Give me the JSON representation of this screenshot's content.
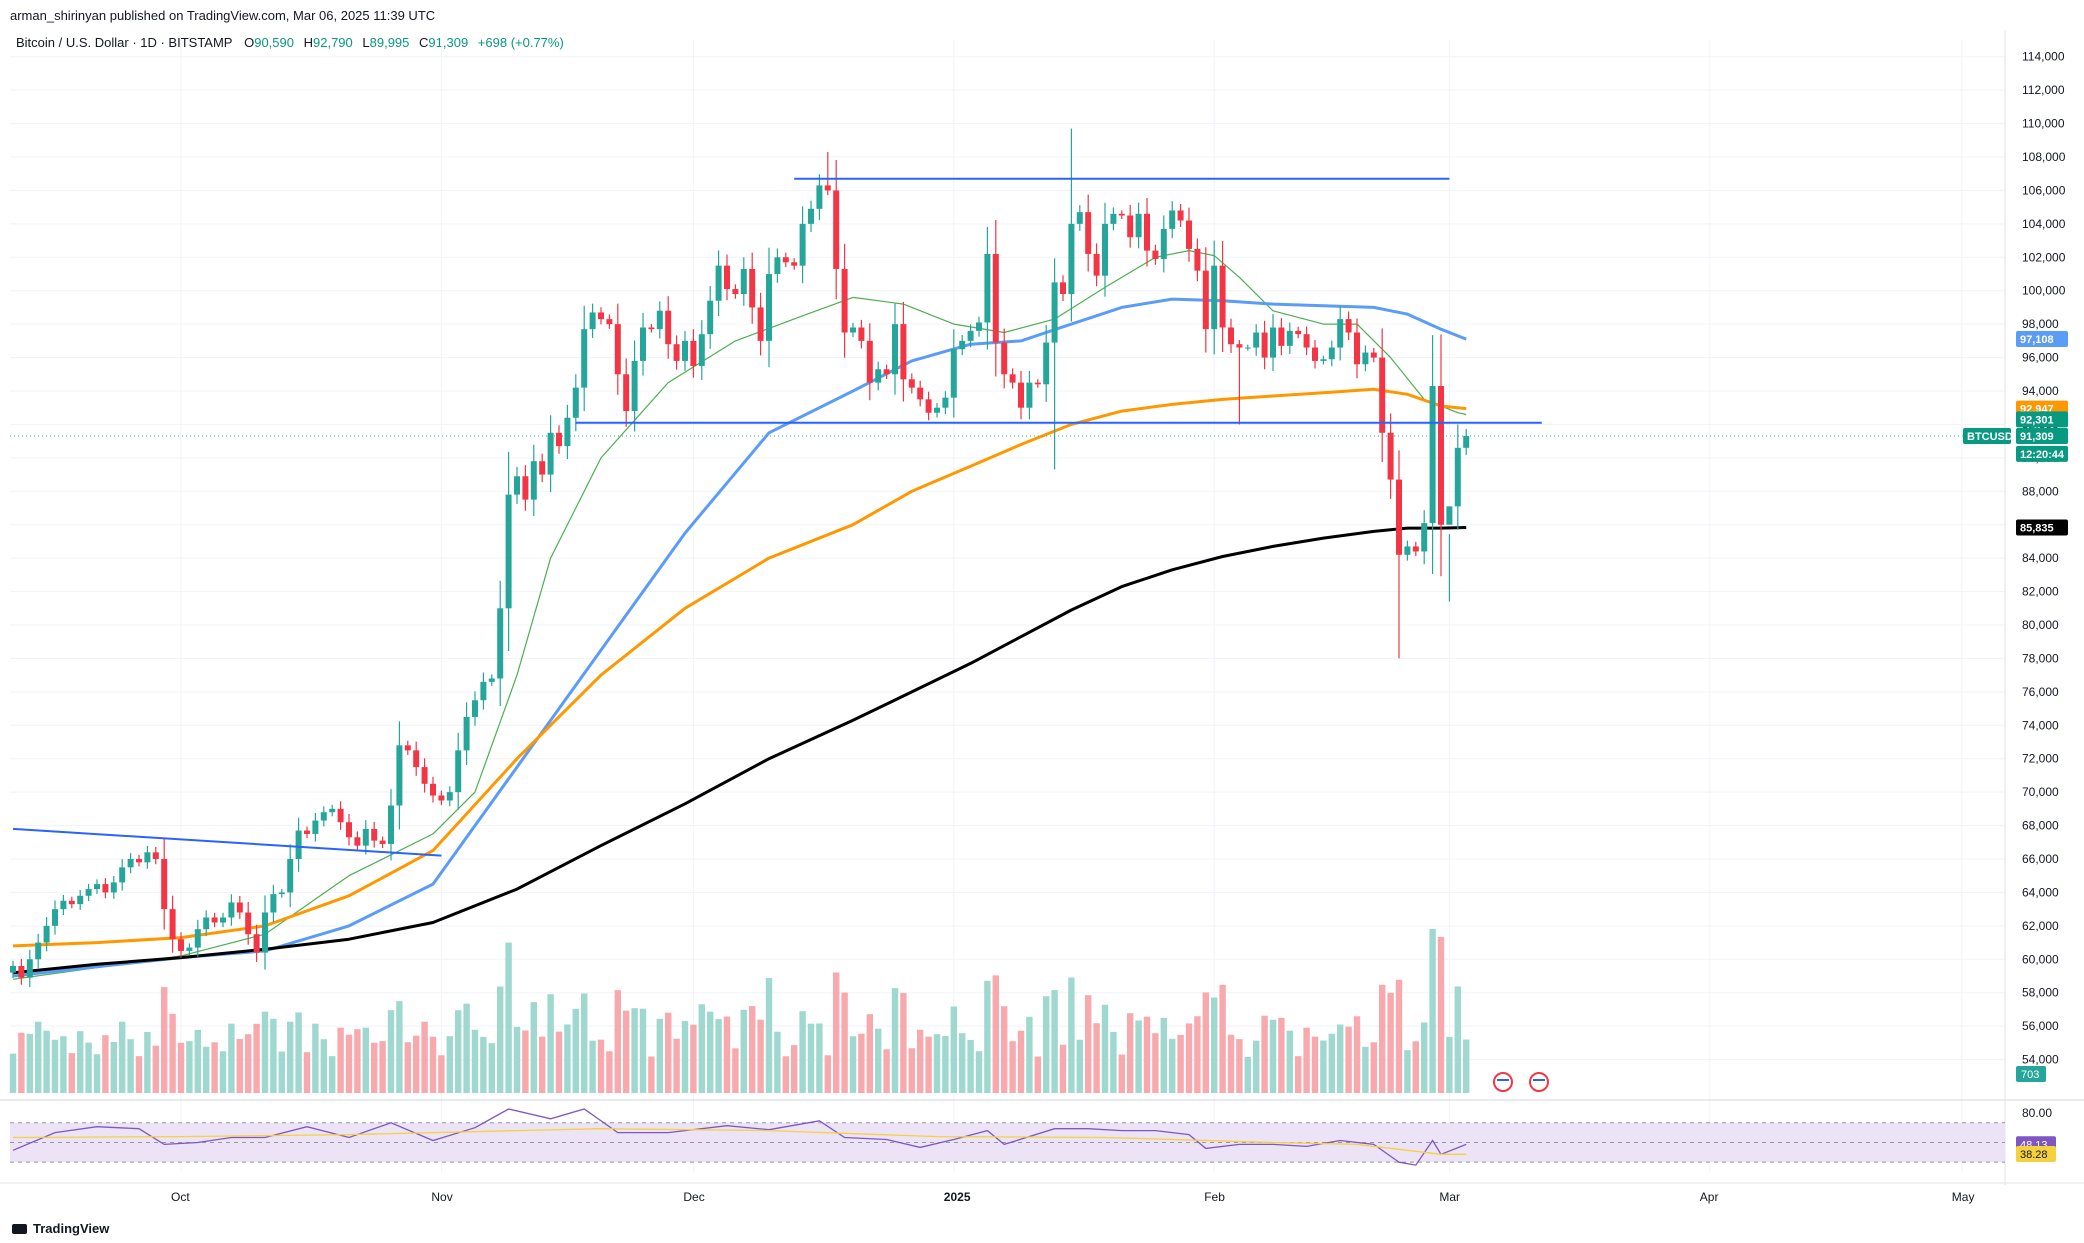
{
  "header": {
    "published": "arman_shirinyan published on TradingView.com, Mar 06, 2025 11:39 UTC"
  },
  "symbol_info": {
    "title": "Bitcoin / U.S. Dollar · 1D · BITSTAMP",
    "open_key": "O",
    "open": "90,590",
    "high_key": "H",
    "high": "92,790",
    "low_key": "L",
    "low": "89,995",
    "close_key": "C",
    "close": "91,309",
    "change": "+698 (+0.77%)"
  },
  "brand": "TradingView",
  "colors": {
    "up": "#26a69a",
    "down": "#f23645",
    "vol_up": "#9ed8cf",
    "vol_down": "#f7a9ae",
    "ma_short": "#4caf50",
    "ma_blue": "#5b9cf6",
    "ma_orange": "#ff9800",
    "ma_black": "#000000",
    "trendline": "#2962ff",
    "rsi": "#7e57c2",
    "rsi_ma": "#f5d13b",
    "rsi_band": "#ece3f7",
    "grid": "#f0f3fa",
    "text": "#131722"
  },
  "chart_data": {
    "type": "candlestick",
    "title": "Bitcoin / U.S. Dollar · 1D · BITSTAMP",
    "ylim": [
      52000,
      115000
    ],
    "y_ticks": [
      "114,000",
      "112,000",
      "110,000",
      "108,000",
      "106,000",
      "104,000",
      "102,000",
      "100,000",
      "98,000",
      "96,000",
      "94,000",
      "92,000",
      "90,000",
      "88,000",
      "86,000",
      "84,000",
      "82,000",
      "80,000",
      "78,000",
      "76,000",
      "74,000",
      "72,000",
      "70,000",
      "68,000",
      "66,000",
      "64,000",
      "62,000",
      "60,000",
      "58,000",
      "56,000",
      "54,000"
    ],
    "x_ticks": [
      "Oct",
      "Nov",
      "Dec",
      "2025",
      "Feb",
      "Mar",
      "Apr",
      "May"
    ],
    "x_tick_days": [
      20,
      51,
      81,
      112,
      143,
      171,
      202,
      232
    ],
    "last_day": 176,
    "ohlc_close": [
      [
        0,
        59600
      ],
      [
        1,
        58900
      ],
      [
        2,
        60000
      ],
      [
        3,
        61000
      ],
      [
        4,
        62000
      ],
      [
        5,
        63000
      ],
      [
        6,
        63500
      ],
      [
        7,
        63300
      ],
      [
        8,
        63800
      ],
      [
        9,
        64200
      ],
      [
        10,
        64500
      ],
      [
        11,
        64000
      ],
      [
        12,
        64600
      ],
      [
        13,
        65500
      ],
      [
        14,
        66000
      ],
      [
        15,
        65800
      ],
      [
        16,
        66400
      ],
      [
        17,
        66000
      ],
      [
        18,
        63000
      ],
      [
        19,
        61200
      ],
      [
        20,
        60500
      ],
      [
        21,
        60700
      ],
      [
        22,
        61800
      ],
      [
        23,
        62500
      ],
      [
        24,
        62200
      ],
      [
        25,
        62500
      ],
      [
        26,
        63400
      ],
      [
        27,
        62800
      ],
      [
        28,
        61500
      ],
      [
        29,
        60400
      ],
      [
        30,
        62800
      ],
      [
        31,
        63900
      ],
      [
        32,
        64000
      ],
      [
        33,
        66000
      ],
      [
        34,
        67700
      ],
      [
        35,
        67500
      ],
      [
        36,
        68300
      ],
      [
        37,
        68800
      ],
      [
        38,
        69000
      ],
      [
        39,
        68200
      ],
      [
        40,
        67300
      ],
      [
        41,
        66800
      ],
      [
        42,
        67800
      ],
      [
        43,
        67100
      ],
      [
        44,
        66900
      ],
      [
        45,
        69200
      ],
      [
        46,
        72800
      ],
      [
        47,
        72500
      ],
      [
        48,
        71500
      ],
      [
        49,
        70500
      ],
      [
        50,
        69800
      ],
      [
        51,
        69500
      ],
      [
        52,
        70000
      ],
      [
        53,
        72500
      ],
      [
        54,
        74500
      ],
      [
        55,
        75500
      ],
      [
        56,
        76600
      ],
      [
        57,
        76800
      ],
      [
        58,
        81000
      ],
      [
        59,
        87800
      ],
      [
        60,
        88900
      ],
      [
        61,
        87500
      ],
      [
        62,
        89800
      ],
      [
        63,
        89000
      ],
      [
        64,
        91500
      ],
      [
        65,
        90700
      ],
      [
        66,
        92400
      ],
      [
        67,
        94200
      ],
      [
        68,
        97700
      ],
      [
        69,
        98700
      ],
      [
        70,
        98300
      ],
      [
        71,
        98000
      ],
      [
        72,
        95000
      ],
      [
        73,
        92800
      ],
      [
        74,
        95800
      ],
      [
        75,
        97800
      ],
      [
        76,
        97700
      ],
      [
        77,
        98800
      ],
      [
        78,
        96800
      ],
      [
        79,
        95800
      ],
      [
        80,
        97000
      ],
      [
        81,
        95500
      ],
      [
        82,
        97400
      ],
      [
        83,
        99400
      ],
      [
        84,
        101500
      ],
      [
        85,
        100100
      ],
      [
        86,
        99800
      ],
      [
        87,
        101300
      ],
      [
        88,
        99000
      ],
      [
        89,
        97000
      ],
      [
        90,
        101000
      ],
      [
        91,
        102000
      ],
      [
        92,
        101700
      ],
      [
        93,
        101500
      ],
      [
        94,
        104000
      ],
      [
        95,
        104900
      ],
      [
        96,
        106300
      ],
      [
        97,
        106000
      ],
      [
        98,
        101300
      ],
      [
        99,
        97500
      ],
      [
        100,
        97800
      ],
      [
        101,
        97000
      ],
      [
        102,
        94500
      ],
      [
        103,
        95300
      ],
      [
        104,
        95000
      ],
      [
        105,
        98000
      ],
      [
        106,
        94700
      ],
      [
        107,
        94200
      ],
      [
        108,
        93500
      ],
      [
        109,
        92700
      ],
      [
        110,
        93000
      ],
      [
        111,
        93600
      ],
      [
        112,
        96500
      ],
      [
        113,
        97000
      ],
      [
        114,
        97600
      ],
      [
        115,
        98100
      ],
      [
        116,
        102200
      ],
      [
        117,
        96900
      ],
      [
        118,
        95000
      ],
      [
        119,
        94500
      ],
      [
        120,
        93000
      ],
      [
        121,
        94500
      ],
      [
        122,
        94400
      ],
      [
        123,
        96900
      ],
      [
        124,
        100500
      ],
      [
        125,
        99800
      ],
      [
        126,
        104000
      ],
      [
        127,
        104700
      ],
      [
        128,
        102200
      ],
      [
        129,
        100900
      ],
      [
        130,
        104000
      ],
      [
        131,
        104600
      ],
      [
        132,
        104500
      ],
      [
        133,
        103200
      ],
      [
        134,
        104600
      ],
      [
        135,
        102400
      ],
      [
        136,
        101900
      ],
      [
        137,
        103700
      ],
      [
        138,
        104800
      ],
      [
        139,
        104200
      ],
      [
        140,
        102500
      ],
      [
        141,
        101200
      ],
      [
        142,
        97700
      ],
      [
        143,
        101500
      ],
      [
        144,
        97800
      ],
      [
        145,
        96800
      ],
      [
        146,
        96600
      ],
      [
        147,
        96600
      ],
      [
        148,
        97500
      ],
      [
        149,
        96000
      ],
      [
        150,
        97800
      ],
      [
        151,
        96700
      ],
      [
        152,
        97600
      ],
      [
        153,
        97400
      ],
      [
        154,
        96600
      ],
      [
        155,
        95800
      ],
      [
        156,
        95900
      ],
      [
        157,
        96600
      ],
      [
        158,
        98300
      ],
      [
        159,
        97500
      ],
      [
        160,
        95600
      ],
      [
        161,
        96300
      ],
      [
        162,
        96000
      ],
      [
        163,
        91500
      ],
      [
        164,
        88700
      ],
      [
        165,
        84200
      ],
      [
        166,
        84700
      ],
      [
        167,
        84400
      ],
      [
        168,
        86100
      ],
      [
        169,
        94300
      ],
      [
        170,
        86000
      ],
      [
        171,
        87100
      ],
      [
        172,
        90600
      ],
      [
        173,
        91309
      ]
    ],
    "series": [
      {
        "name": "",
        "color": "#4caf50",
        "points": [
          [
            0,
            58800
          ],
          [
            20,
            60200
          ],
          [
            30,
            61500
          ],
          [
            40,
            65000
          ],
          [
            50,
            67500
          ],
          [
            55,
            70000
          ],
          [
            60,
            77000
          ],
          [
            64,
            84000
          ],
          [
            70,
            90000
          ],
          [
            78,
            94500
          ],
          [
            86,
            97000
          ],
          [
            94,
            98500
          ],
          [
            100,
            99600
          ],
          [
            106,
            99200
          ],
          [
            112,
            98000
          ],
          [
            118,
            97500
          ],
          [
            124,
            98300
          ],
          [
            130,
            100200
          ],
          [
            136,
            102000
          ],
          [
            140,
            102400
          ],
          [
            143,
            102100
          ],
          [
            146,
            100800
          ],
          [
            150,
            98800
          ],
          [
            156,
            98000
          ],
          [
            160,
            98000
          ],
          [
            164,
            96000
          ],
          [
            168,
            93500
          ],
          [
            172,
            92700
          ],
          [
            173,
            92600
          ]
        ]
      },
      {
        "name": "",
        "color": "#5b9cf6",
        "points": [
          [
            0,
            59000
          ],
          [
            20,
            60100
          ],
          [
            30,
            60500
          ],
          [
            40,
            62000
          ],
          [
            50,
            64500
          ],
          [
            60,
            71500
          ],
          [
            70,
            78500
          ],
          [
            80,
            85500
          ],
          [
            90,
            91500
          ],
          [
            100,
            94000
          ],
          [
            107,
            95800
          ],
          [
            114,
            96800
          ],
          [
            120,
            97000
          ],
          [
            126,
            98000
          ],
          [
            132,
            99000
          ],
          [
            138,
            99500
          ],
          [
            144,
            99400
          ],
          [
            150,
            99200
          ],
          [
            156,
            99100
          ],
          [
            162,
            99000
          ],
          [
            166,
            98600
          ],
          [
            170,
            97700
          ],
          [
            173,
            97108
          ]
        ]
      },
      {
        "name": "",
        "color": "#ff9800",
        "points": [
          [
            0,
            60800
          ],
          [
            10,
            61000
          ],
          [
            20,
            61300
          ],
          [
            30,
            62000
          ],
          [
            40,
            63800
          ],
          [
            50,
            66500
          ],
          [
            60,
            72000
          ],
          [
            70,
            77000
          ],
          [
            80,
            81000
          ],
          [
            90,
            84000
          ],
          [
            100,
            86000
          ],
          [
            107,
            88000
          ],
          [
            114,
            89500
          ],
          [
            120,
            90800
          ],
          [
            126,
            92000
          ],
          [
            132,
            92800
          ],
          [
            138,
            93200
          ],
          [
            144,
            93500
          ],
          [
            150,
            93700
          ],
          [
            156,
            93900
          ],
          [
            162,
            94100
          ],
          [
            166,
            93800
          ],
          [
            170,
            93100
          ],
          [
            173,
            92947
          ]
        ]
      },
      {
        "name": "",
        "color": "#000000",
        "points": [
          [
            0,
            59200
          ],
          [
            10,
            59700
          ],
          [
            20,
            60100
          ],
          [
            30,
            60600
          ],
          [
            40,
            61200
          ],
          [
            50,
            62200
          ],
          [
            60,
            64200
          ],
          [
            70,
            66800
          ],
          [
            80,
            69300
          ],
          [
            90,
            72000
          ],
          [
            100,
            74300
          ],
          [
            107,
            76000
          ],
          [
            114,
            77700
          ],
          [
            120,
            79300
          ],
          [
            126,
            80900
          ],
          [
            132,
            82300
          ],
          [
            138,
            83300
          ],
          [
            144,
            84100
          ],
          [
            150,
            84700
          ],
          [
            156,
            85200
          ],
          [
            162,
            85600
          ],
          [
            166,
            85800
          ],
          [
            170,
            85800
          ],
          [
            173,
            85835
          ]
        ]
      }
    ],
    "trendlines": [
      {
        "from": [
          0,
          67800
        ],
        "to": [
          51,
          66200
        ]
      },
      {
        "from": [
          93,
          106700
        ],
        "to": [
          171,
          106700
        ]
      },
      {
        "from": [
          67,
          92100
        ],
        "to": [
          182,
          92100
        ]
      }
    ],
    "price_labels": [
      {
        "value": "97,108",
        "y": 97108,
        "color": "#5b9cf6"
      },
      {
        "value": "92,947",
        "y": 92947,
        "color": "#ff9800"
      },
      {
        "value": "92,301",
        "y": 92301,
        "color": "#089981"
      },
      {
        "value": "BTCUSD",
        "y": 91309,
        "color": "#089981"
      },
      {
        "value": "91,309",
        "y": 91309,
        "color": "#089981"
      },
      {
        "value": "12:20:44",
        "y": 90600,
        "color": "#089981"
      },
      {
        "value": "85,835",
        "y": 85835,
        "color": "#000000"
      }
    ],
    "volume": {
      "last_label": "703"
    },
    "rsi": {
      "ylim": [
        20,
        85
      ],
      "tick": "80.00",
      "values": [
        [
          0,
          42
        ],
        [
          5,
          60
        ],
        [
          10,
          66
        ],
        [
          15,
          64
        ],
        [
          18,
          48
        ],
        [
          22,
          50
        ],
        [
          26,
          55
        ],
        [
          30,
          55
        ],
        [
          35,
          66
        ],
        [
          40,
          55
        ],
        [
          45,
          70
        ],
        [
          50,
          52
        ],
        [
          55,
          65
        ],
        [
          59,
          84
        ],
        [
          64,
          74
        ],
        [
          68,
          84
        ],
        [
          72,
          60
        ],
        [
          78,
          60
        ],
        [
          85,
          67
        ],
        [
          90,
          63
        ],
        [
          96,
          72
        ],
        [
          99,
          55
        ],
        [
          104,
          53
        ],
        [
          108,
          45
        ],
        [
          112,
          53
        ],
        [
          116,
          62
        ],
        [
          118,
          48
        ],
        [
          124,
          64
        ],
        [
          128,
          64
        ],
        [
          132,
          62
        ],
        [
          136,
          62
        ],
        [
          140,
          58
        ],
        [
          142,
          44
        ],
        [
          146,
          48
        ],
        [
          150,
          48
        ],
        [
          154,
          46
        ],
        [
          158,
          52
        ],
        [
          162,
          48
        ],
        [
          165,
          30
        ],
        [
          167,
          27
        ],
        [
          169,
          52
        ],
        [
          170,
          38
        ],
        [
          173,
          48
        ]
      ],
      "ma_values": [
        [
          0,
          55
        ],
        [
          20,
          56
        ],
        [
          40,
          58
        ],
        [
          60,
          62
        ],
        [
          70,
          64
        ],
        [
          90,
          62
        ],
        [
          110,
          56
        ],
        [
          130,
          55
        ],
        [
          150,
          50
        ],
        [
          160,
          48
        ],
        [
          166,
          42
        ],
        [
          170,
          38
        ],
        [
          173,
          38
        ]
      ],
      "value_label": "48.13",
      "ma_label": "38.28"
    }
  }
}
